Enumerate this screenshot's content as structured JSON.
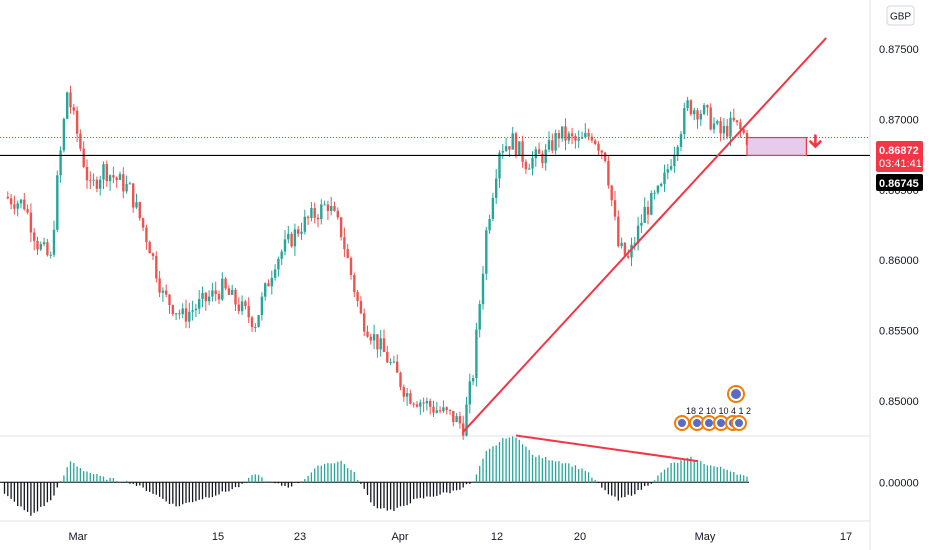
{
  "currency": "GBP",
  "colors": {
    "up": "#26a69a",
    "down": "#ef5350",
    "trendline": "#f23645",
    "level": "#000000",
    "dotted_price": "#f23645",
    "box_fill": "#e1bee7",
    "box_border": "#f23645",
    "event_ring": "#f57c00",
    "event_fill": "#5c6bc0"
  },
  "price_tag": {
    "price": "0.86872",
    "countdown": "03:41:41"
  },
  "level_tag": {
    "price": "0.86745"
  },
  "events_label": "18 2 10 10 4 1 2",
  "chart_data": [
    {
      "type": "candlestick",
      "title": "",
      "ylim": [
        0.8475,
        0.8785
      ],
      "y_ticks": [
        0.85,
        0.855,
        0.86,
        0.865,
        0.87,
        0.875
      ],
      "y_tick_labels": [
        "0.85000",
        "0.85500",
        "0.86000",
        "0.86500",
        "0.87000",
        "0.87500"
      ],
      "x_ticks": [
        "Mar",
        "15",
        "23",
        "Apr",
        "12",
        "20",
        "May",
        "17"
      ],
      "keypoints": [
        [
          0,
          0.8645
        ],
        [
          6,
          0.864
        ],
        [
          10,
          0.8612
        ],
        [
          14,
          0.86
        ],
        [
          16,
          0.8655
        ],
        [
          19,
          0.872
        ],
        [
          22,
          0.869
        ],
        [
          26,
          0.865
        ],
        [
          30,
          0.8665
        ],
        [
          38,
          0.865
        ],
        [
          44,
          0.861
        ],
        [
          48,
          0.8575
        ],
        [
          54,
          0.856
        ],
        [
          60,
          0.857
        ],
        [
          66,
          0.858
        ],
        [
          72,
          0.8565
        ],
        [
          76,
          0.8556
        ],
        [
          82,
          0.86
        ],
        [
          90,
          0.8625
        ],
        [
          98,
          0.864
        ],
        [
          102,
          0.862
        ],
        [
          108,
          0.856
        ],
        [
          116,
          0.853
        ],
        [
          122,
          0.8505
        ],
        [
          130,
          0.8495
        ],
        [
          136,
          0.8488
        ],
        [
          139,
          0.8482
        ],
        [
          142,
          0.852
        ],
        [
          146,
          0.862
        ],
        [
          150,
          0.868
        ],
        [
          154,
          0.8685
        ],
        [
          158,
          0.867
        ],
        [
          164,
          0.8675
        ],
        [
          168,
          0.869
        ],
        [
          174,
          0.8683
        ],
        [
          178,
          0.869
        ],
        [
          182,
          0.8675
        ],
        [
          186,
          0.861
        ],
        [
          189,
          0.86
        ],
        [
          194,
          0.8635
        ],
        [
          199,
          0.865
        ],
        [
          203,
          0.868
        ],
        [
          207,
          0.871
        ],
        [
          212,
          0.8705
        ],
        [
          217,
          0.869
        ],
        [
          221,
          0.8697
        ],
        [
          225,
          0.8687
        ]
      ],
      "trendline": [
        [
          139,
          0.8478
        ],
        [
          249,
          0.8758
        ]
      ],
      "horizontal_level": 0.86745,
      "current_price": 0.86872,
      "box": [
        [
          225,
          0.86872
        ],
        [
          243,
          0.86745
        ]
      ]
    },
    {
      "type": "histogram",
      "title": "",
      "ylim": [
        -0.0025,
        0.003
      ],
      "y_ticks": [
        0.0
      ],
      "y_tick_labels": [
        "0.00000"
      ],
      "keypoints": [
        [
          0,
          -0.0008
        ],
        [
          8,
          -0.0022
        ],
        [
          14,
          -0.0012
        ],
        [
          17,
          0.0
        ],
        [
          20,
          0.0014
        ],
        [
          24,
          0.0008
        ],
        [
          30,
          0.0003
        ],
        [
          38,
          0.0
        ],
        [
          44,
          -0.0006
        ],
        [
          52,
          -0.0016
        ],
        [
          58,
          -0.0012
        ],
        [
          66,
          -0.0007
        ],
        [
          72,
          -0.0002
        ],
        [
          76,
          0.0006
        ],
        [
          80,
          0.0
        ],
        [
          86,
          -0.0003
        ],
        [
          90,
          0.0001
        ],
        [
          96,
          0.0012
        ],
        [
          102,
          0.0014
        ],
        [
          106,
          0.0006
        ],
        [
          112,
          -0.0016
        ],
        [
          118,
          -0.0019
        ],
        [
          124,
          -0.0012
        ],
        [
          130,
          -0.0009
        ],
        [
          136,
          -0.0006
        ],
        [
          142,
          0.0
        ],
        [
          146,
          0.002
        ],
        [
          152,
          0.003
        ],
        [
          156,
          0.0029
        ],
        [
          160,
          0.0018
        ],
        [
          164,
          0.0016
        ],
        [
          170,
          0.0013
        ],
        [
          176,
          0.0008
        ],
        [
          182,
          -0.0006
        ],
        [
          186,
          -0.0012
        ],
        [
          192,
          -0.0006
        ],
        [
          196,
          0.0
        ],
        [
          202,
          0.0012
        ],
        [
          208,
          0.0016
        ],
        [
          214,
          0.0011
        ],
        [
          220,
          0.0008
        ],
        [
          225,
          0.0003
        ]
      ],
      "divergence_line": [
        [
          155,
          0.0031
        ],
        [
          210,
          0.0014
        ]
      ]
    }
  ]
}
